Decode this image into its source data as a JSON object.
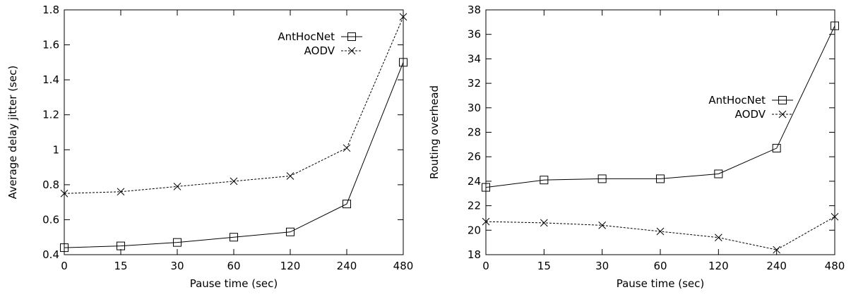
{
  "chart_data": [
    {
      "type": "line",
      "categories": [
        "0",
        "15",
        "30",
        "60",
        "120",
        "240",
        "480"
      ],
      "xlabel": "Pause time (sec)",
      "ylabel": "Average delay jitter (sec)",
      "ylim": [
        0.4,
        1.8
      ],
      "yticks": [
        "0.4",
        "0.6",
        "0.8",
        "1",
        "1.2",
        "1.4",
        "1.6",
        "1.8"
      ],
      "grid": false,
      "legend_position": "top-right",
      "series": [
        {
          "name": "AntHocNet",
          "marker": "square",
          "line": "solid",
          "values": [
            0.44,
            0.45,
            0.47,
            0.5,
            0.53,
            0.69,
            1.5
          ]
        },
        {
          "name": "AODV",
          "marker": "x",
          "line": "dashed",
          "values": [
            0.75,
            0.76,
            0.79,
            0.82,
            0.85,
            1.01,
            1.76
          ]
        }
      ]
    },
    {
      "type": "line",
      "categories": [
        "0",
        "15",
        "30",
        "60",
        "120",
        "240",
        "480"
      ],
      "xlabel": "Pause time (sec)",
      "ylabel": "Routing overhead",
      "ylim": [
        18,
        38
      ],
      "yticks": [
        "18",
        "20",
        "22",
        "24",
        "26",
        "28",
        "30",
        "32",
        "34",
        "36",
        "38"
      ],
      "grid": false,
      "legend_position": "top-right",
      "series": [
        {
          "name": "AntHocNet",
          "marker": "square",
          "line": "solid",
          "values": [
            23.5,
            24.1,
            24.2,
            24.2,
            24.6,
            26.7,
            36.7
          ]
        },
        {
          "name": "AODV",
          "marker": "x",
          "line": "dashed",
          "values": [
            20.7,
            20.6,
            20.4,
            19.9,
            19.4,
            18.4,
            21.1
          ]
        }
      ]
    }
  ]
}
